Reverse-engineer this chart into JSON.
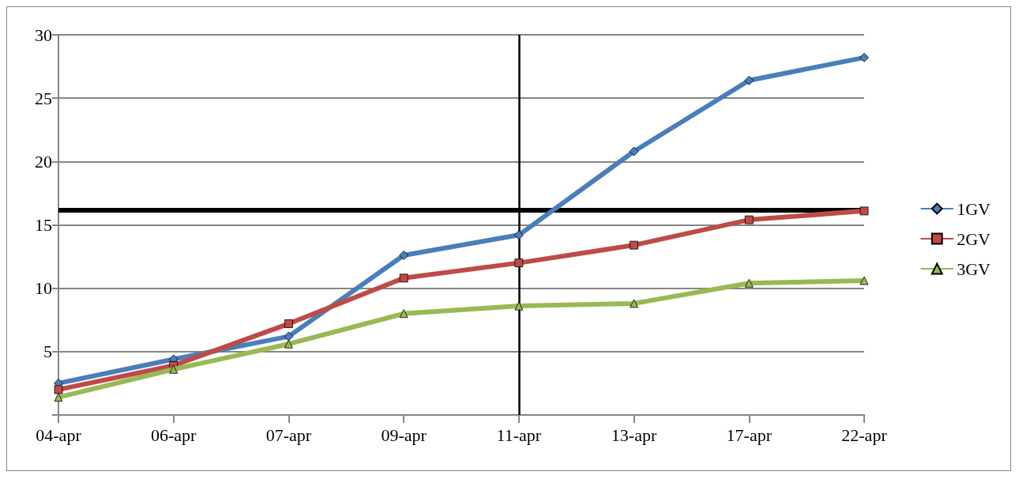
{
  "chart_data": {
    "type": "line",
    "categories": [
      "04-apr",
      "06-apr",
      "07-apr",
      "09-apr",
      "11-apr",
      "13-apr",
      "17-apr",
      "22-apr"
    ],
    "series": [
      {
        "name": "1GV",
        "color": "#4a7ebb",
        "marker": "diamond",
        "values": [
          2.5,
          4.4,
          6.2,
          12.6,
          14.2,
          20.8,
          26.4,
          28.2
        ]
      },
      {
        "name": "2GV",
        "color": "#be4b48",
        "marker": "square",
        "values": [
          2.0,
          3.9,
          7.2,
          10.8,
          12.0,
          13.4,
          15.4,
          16.1
        ]
      },
      {
        "name": "3GV",
        "color": "#98b954",
        "marker": "triangle",
        "values": [
          1.4,
          3.6,
          5.6,
          8.0,
          8.6,
          8.8,
          10.4,
          10.6
        ]
      }
    ],
    "ylim": [
      0,
      30
    ],
    "yticks": [
      {
        "value": 0,
        "label": null
      },
      5,
      10,
      15,
      20,
      25,
      30
    ],
    "grid": "y",
    "legend": "right",
    "line_style": "solid",
    "ref_lines": [
      {
        "axis": "y",
        "value": 16.2,
        "color": "#000000"
      },
      {
        "axis": "x",
        "value": "11-apr",
        "color": "#000000"
      }
    ]
  }
}
